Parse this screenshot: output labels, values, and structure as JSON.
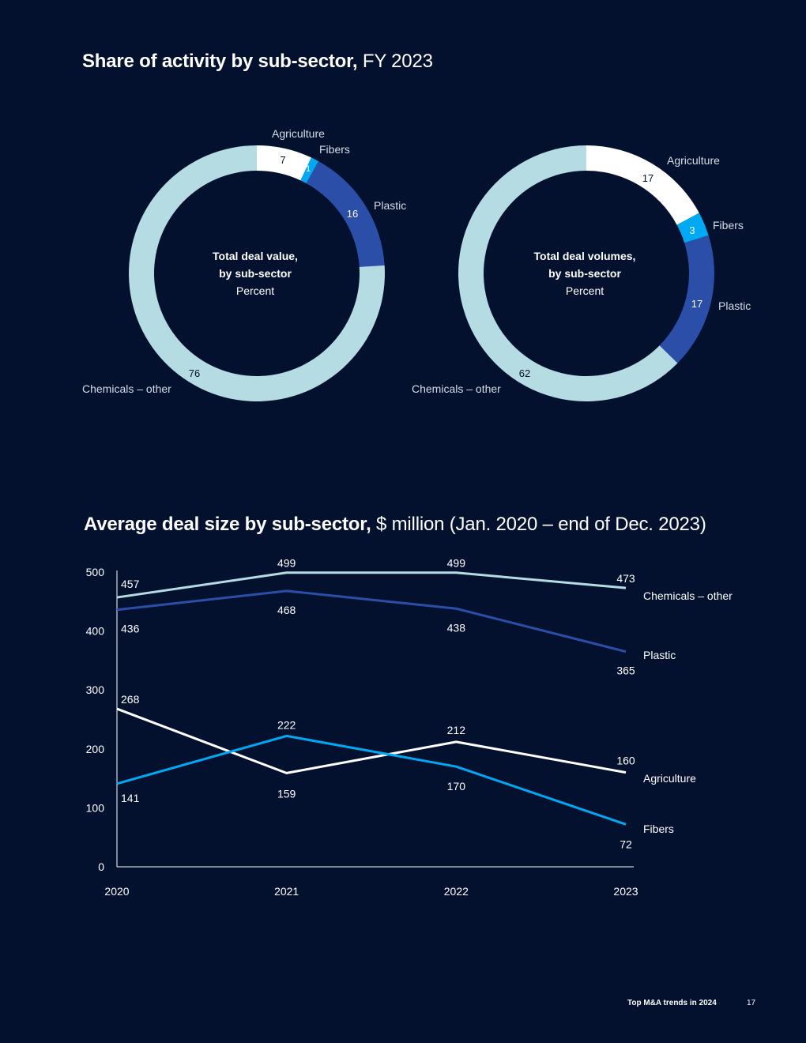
{
  "charts_section": {
    "title_bold": "Share of activity by sub-sector,",
    "title_light": "FY 2023"
  },
  "line_section": {
    "title_bold": "Average deal size by sub-sector,",
    "title_light": "$ million (Jan. 2020 – end of Dec. 2023)"
  },
  "footer": {
    "label": "Top M&A trends in 2024",
    "page": "17"
  },
  "colors": {
    "background": "#03112e",
    "agriculture": "#ffffff",
    "fibers": "#00a9f4",
    "plastic": "#2b4fa8",
    "chemicals_other": "#b4dce2"
  },
  "chart_data": [
    {
      "type": "pie",
      "variant": "donut",
      "center_label": [
        "Total deal value,",
        "by sub-sector"
      ],
      "center_sublabel": "Percent",
      "slices": [
        {
          "name": "Agriculture",
          "value": 7,
          "value_label": "7",
          "color": "#ffffff"
        },
        {
          "name": "Fibers",
          "value": 1,
          "value_label": "1",
          "color": "#00a9f4"
        },
        {
          "name": "Plastic",
          "value": 16,
          "value_label": "16",
          "color": "#2b4fa8"
        },
        {
          "name": "Chemicals – other",
          "value": 76,
          "value_label": "76",
          "color": "#b4dce2"
        }
      ]
    },
    {
      "type": "pie",
      "variant": "donut",
      "center_label": [
        "Total deal volumes,",
        "by sub-sector"
      ],
      "center_sublabel": "Percent",
      "slices": [
        {
          "name": "Agriculture",
          "value": 17,
          "value_label": "17",
          "color": "#ffffff"
        },
        {
          "name": "Fibers",
          "value": 3,
          "value_label": "3",
          "color": "#00a9f4"
        },
        {
          "name": "Plastic",
          "value": 17,
          "value_label": "17",
          "color": "#2b4fa8"
        },
        {
          "name": "Chemicals – other",
          "value": 62,
          "value_label": "62",
          "color": "#b4dce2"
        }
      ]
    },
    {
      "type": "line",
      "x": [
        "2020",
        "2021",
        "2022",
        "2023"
      ],
      "ylim": [
        0,
        500
      ],
      "yticks": [
        "0",
        "100",
        "200",
        "300",
        "400",
        "500"
      ],
      "legend": "inline-right",
      "grid": false,
      "series": [
        {
          "name": "Chemicals – other",
          "values": [
            457,
            499,
            499,
            473
          ],
          "color": "#b4dce2"
        },
        {
          "name": "Plastic",
          "values": [
            436,
            468,
            438,
            365
          ],
          "color": "#2b4fa8"
        },
        {
          "name": "Agriculture",
          "values": [
            268,
            159,
            212,
            160
          ],
          "color": "#ffffff"
        },
        {
          "name": "Fibers",
          "values": [
            141,
            222,
            170,
            72
          ],
          "color": "#00a9f4"
        }
      ]
    }
  ]
}
